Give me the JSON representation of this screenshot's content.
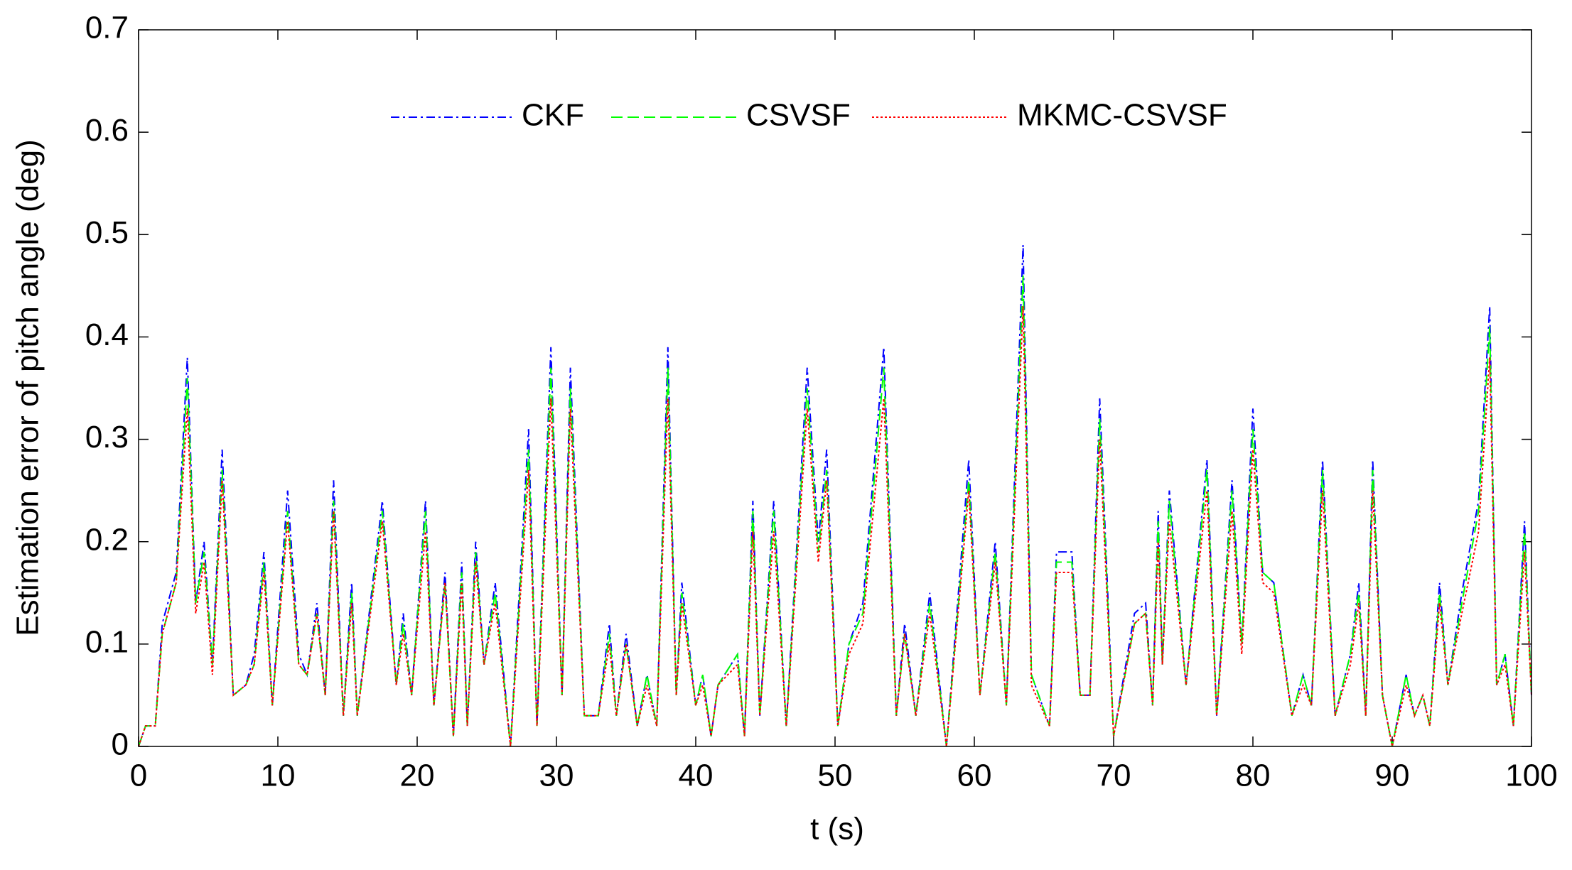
{
  "chart_data": {
    "type": "line",
    "xlabel": "t (s)",
    "ylabel": "Estimation error of pitch angle (deg)",
    "x": [
      0,
      0.5,
      1.2,
      1.7,
      2.7,
      3.5,
      4.1,
      4.7,
      5.3,
      6,
      6.8,
      7.7,
      8.3,
      9,
      9.6,
      10.7,
      11.5,
      12.1,
      12.8,
      13.4,
      14,
      14.7,
      15.3,
      15.7,
      17.5,
      18.5,
      19,
      19.6,
      20.6,
      21.2,
      22,
      22.6,
      23.2,
      23.6,
      24.2,
      24.8,
      25.6,
      26.7,
      28,
      28.6,
      29.6,
      30.4,
      31,
      32,
      33,
      33.8,
      34.3,
      35,
      35.8,
      36.5,
      37.2,
      38,
      38.6,
      39,
      40,
      40.5,
      41.1,
      41.6,
      43,
      43.5,
      44.1,
      44.6,
      45.6,
      46.5,
      48,
      48.8,
      49.4,
      50.2,
      51,
      52,
      53.5,
      54.4,
      55,
      55.8,
      56.8,
      58,
      59.6,
      60.4,
      61.5,
      62.3,
      63.5,
      64.1,
      65.4,
      65.9,
      67,
      67.6,
      68.3,
      69,
      70,
      71.5,
      72.3,
      72.8,
      73.2,
      73.5,
      74,
      75.2,
      76.7,
      77.4,
      78.5,
      79.2,
      80,
      80.7,
      81.5,
      82.8,
      83.6,
      84.2,
      85,
      85.9,
      87,
      87.6,
      88.1,
      88.6,
      89.3,
      90,
      91,
      91.6,
      92.2,
      92.7,
      93.4,
      94,
      95,
      96.2,
      97,
      97.5,
      98.1,
      98.7,
      99.5,
      100
    ],
    "series": [
      {
        "name": "CKF",
        "color": "#0000ff",
        "dash": "dashdot",
        "values": [
          0,
          0.02,
          0.02,
          0.12,
          0.17,
          0.38,
          0.14,
          0.2,
          0.08,
          0.29,
          0.05,
          0.06,
          0.09,
          0.19,
          0.04,
          0.25,
          0.09,
          0.07,
          0.14,
          0.05,
          0.26,
          0.03,
          0.16,
          0.03,
          0.24,
          0.06,
          0.13,
          0.05,
          0.24,
          0.04,
          0.17,
          0.01,
          0.18,
          0.02,
          0.2,
          0.08,
          0.16,
          0,
          0.31,
          0.02,
          0.39,
          0.05,
          0.37,
          0.03,
          0.03,
          0.12,
          0.03,
          0.11,
          0.02,
          0.07,
          0.02,
          0.39,
          0.05,
          0.16,
          0.04,
          0.07,
          0.01,
          0.06,
          0.09,
          0.01,
          0.24,
          0.03,
          0.24,
          0.02,
          0.37,
          0.2,
          0.29,
          0.02,
          0.1,
          0.14,
          0.39,
          0.03,
          0.12,
          0.03,
          0.15,
          0,
          0.28,
          0.05,
          0.2,
          0.04,
          0.49,
          0.07,
          0.02,
          0.19,
          0.19,
          0.05,
          0.05,
          0.34,
          0.01,
          0.13,
          0.14,
          0.04,
          0.23,
          0.08,
          0.25,
          0.06,
          0.28,
          0.03,
          0.26,
          0.1,
          0.33,
          0.17,
          0.16,
          0.03,
          0.07,
          0.04,
          0.28,
          0.03,
          0.09,
          0.16,
          0.03,
          0.28,
          0.05,
          0,
          0.07,
          0.03,
          0.05,
          0.02,
          0.16,
          0.06,
          0.15,
          0.24,
          0.43,
          0.06,
          0.09,
          0.02,
          0.22,
          0.05
        ]
      },
      {
        "name": "CSVSF",
        "color": "#00ff00",
        "dash": "dashed",
        "values": [
          0,
          0.02,
          0.02,
          0.11,
          0.16,
          0.36,
          0.14,
          0.19,
          0.08,
          0.27,
          0.05,
          0.06,
          0.08,
          0.18,
          0.04,
          0.23,
          0.08,
          0.07,
          0.13,
          0.05,
          0.24,
          0.03,
          0.15,
          0.03,
          0.23,
          0.06,
          0.12,
          0.05,
          0.23,
          0.04,
          0.16,
          0.01,
          0.17,
          0.02,
          0.19,
          0.08,
          0.15,
          0,
          0.29,
          0.02,
          0.37,
          0.05,
          0.35,
          0.03,
          0.03,
          0.11,
          0.03,
          0.1,
          0.02,
          0.07,
          0.02,
          0.37,
          0.05,
          0.15,
          0.04,
          0.07,
          0.01,
          0.06,
          0.09,
          0.01,
          0.23,
          0.03,
          0.23,
          0.02,
          0.35,
          0.19,
          0.27,
          0.02,
          0.1,
          0.13,
          0.37,
          0.03,
          0.11,
          0.03,
          0.14,
          0,
          0.26,
          0.05,
          0.19,
          0.04,
          0.46,
          0.07,
          0.02,
          0.18,
          0.18,
          0.05,
          0.05,
          0.32,
          0.01,
          0.12,
          0.13,
          0.04,
          0.22,
          0.08,
          0.24,
          0.06,
          0.27,
          0.03,
          0.25,
          0.1,
          0.31,
          0.17,
          0.16,
          0.03,
          0.07,
          0.04,
          0.27,
          0.03,
          0.09,
          0.15,
          0.03,
          0.27,
          0.05,
          0,
          0.07,
          0.03,
          0.05,
          0.02,
          0.15,
          0.06,
          0.14,
          0.23,
          0.41,
          0.06,
          0.09,
          0.02,
          0.21,
          0.05
        ]
      },
      {
        "name": "MKMC-CSVSF",
        "color": "#ff0000",
        "dash": "dotted",
        "values": [
          0,
          0.02,
          0.02,
          0.11,
          0.16,
          0.33,
          0.13,
          0.18,
          0.07,
          0.26,
          0.05,
          0.06,
          0.08,
          0.17,
          0.04,
          0.22,
          0.08,
          0.07,
          0.13,
          0.05,
          0.23,
          0.03,
          0.14,
          0.03,
          0.22,
          0.06,
          0.11,
          0.05,
          0.21,
          0.04,
          0.16,
          0.01,
          0.16,
          0.02,
          0.18,
          0.08,
          0.14,
          0,
          0.27,
          0.02,
          0.34,
          0.05,
          0.33,
          0.03,
          0.03,
          0.1,
          0.03,
          0.1,
          0.02,
          0.06,
          0.02,
          0.34,
          0.05,
          0.14,
          0.04,
          0.06,
          0.01,
          0.06,
          0.08,
          0.01,
          0.21,
          0.03,
          0.21,
          0.02,
          0.33,
          0.18,
          0.26,
          0.02,
          0.09,
          0.12,
          0.34,
          0.03,
          0.11,
          0.03,
          0.13,
          0,
          0.25,
          0.05,
          0.18,
          0.04,
          0.43,
          0.06,
          0.02,
          0.17,
          0.17,
          0.05,
          0.05,
          0.3,
          0.01,
          0.12,
          0.13,
          0.04,
          0.2,
          0.08,
          0.22,
          0.06,
          0.25,
          0.03,
          0.23,
          0.09,
          0.29,
          0.16,
          0.15,
          0.03,
          0.06,
          0.04,
          0.25,
          0.03,
          0.08,
          0.14,
          0.03,
          0.25,
          0.05,
          0,
          0.06,
          0.03,
          0.05,
          0.02,
          0.14,
          0.06,
          0.13,
          0.21,
          0.38,
          0.06,
          0.08,
          0.02,
          0.19,
          0.05
        ]
      }
    ],
    "xlim": [
      0,
      100
    ],
    "xticks": [
      0,
      10,
      20,
      30,
      40,
      50,
      60,
      70,
      80,
      90,
      100
    ],
    "ylim": [
      0,
      0.7
    ],
    "yticks": [
      0,
      0.1,
      0.2,
      0.3,
      0.4,
      0.5,
      0.6,
      0.7
    ],
    "grid": false,
    "legend": "upper center"
  }
}
